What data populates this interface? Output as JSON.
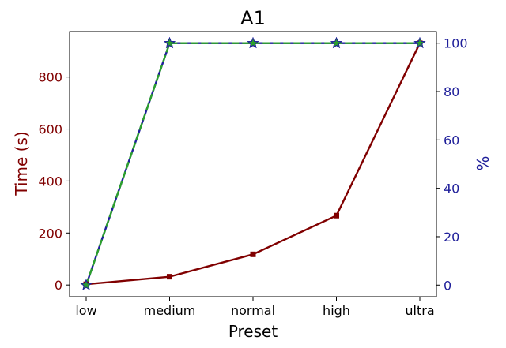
{
  "chart_data": {
    "type": "line",
    "title": "A1",
    "xlabel": "Preset",
    "ylabel_left": "Time (s)",
    "ylabel_right": "%",
    "categories": [
      "low",
      "medium",
      "normal",
      "high",
      "ultra"
    ],
    "ylim_left": [
      -45,
      975
    ],
    "yticks_left": [
      0,
      200,
      400,
      600,
      800
    ],
    "ylim_right": [
      -4.8,
      104.8
    ],
    "yticks_right": [
      0,
      20,
      40,
      60,
      80,
      100
    ],
    "grid": false,
    "left_axis_color": "#800000",
    "right_axis_color": "#1f1f9a",
    "series": [
      {
        "axis": "left",
        "values": [
          3,
          32,
          118,
          267,
          930
        ],
        "color": "#800000",
        "marker": "square",
        "linestyle": "solid"
      },
      {
        "axis": "right",
        "values": [
          0,
          100,
          100,
          100,
          100
        ],
        "color": "#1f1f9a",
        "marker": "star",
        "linestyle": "solid"
      },
      {
        "axis": "right",
        "values": [
          0,
          100,
          100,
          100,
          100
        ],
        "color": "#2ca02c",
        "marker": "star",
        "linestyle": "dashed"
      }
    ]
  }
}
